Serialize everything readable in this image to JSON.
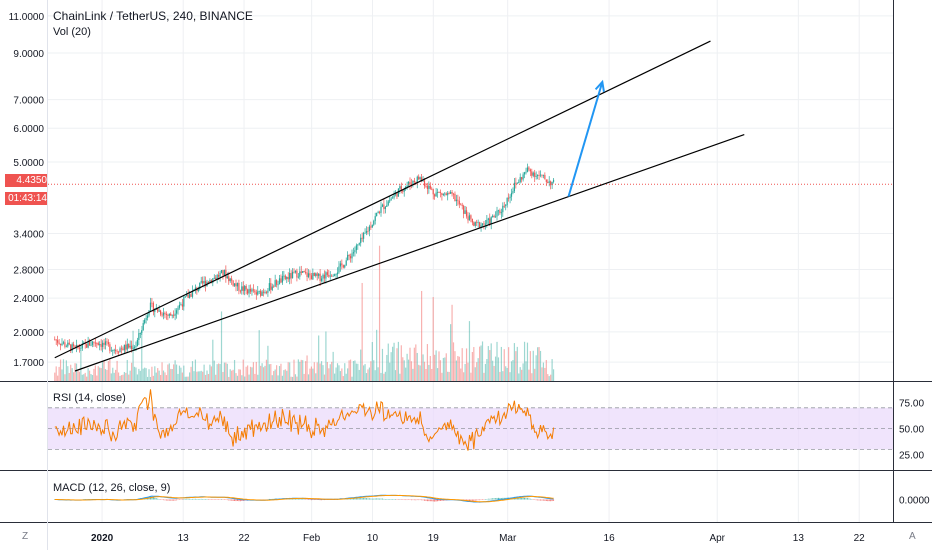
{
  "header": {
    "symbol_line": "ChainLink / TetherUS, 240, BINANCE"
  },
  "volume_legend": "Vol (20)",
  "rsi_legend": "RSI (14, close)",
  "macd_legend": "MACD (12, 26, close, 9)",
  "last_price": "4.4350",
  "countdown": "01:43:14",
  "corner_left": "Z",
  "corner_right": "A",
  "colors": {
    "up": "#26a69a",
    "down": "#ef5350",
    "rsi": "#f57c00",
    "rsi_band": "#e9d8fb",
    "macd": "#2196f3",
    "signal": "#ff9800",
    "arrow": "#2196f3",
    "price_line": "#ef5350"
  },
  "chart_data": [
    {
      "type": "candlestick",
      "title": "ChainLink / TetherUS, 240, BINANCE",
      "y_scale": "log",
      "y_ticks": [
        "11.0000",
        "9.0000",
        "7.0000",
        "6.0000",
        "5.0000",
        "3.4000",
        "2.8000",
        "2.4000",
        "2.0000",
        "1.7000"
      ],
      "x_ticks": [
        "2020",
        "13",
        "22",
        "Feb",
        "10",
        "19",
        "Mar",
        "16",
        "Apr",
        "13",
        "22"
      ],
      "path_points": [
        [
          "2019-12-25",
          1.92
        ],
        [
          "2019-12-28",
          1.82
        ],
        [
          "2019-12-31",
          1.9
        ],
        [
          "2020-01-03",
          1.82
        ],
        [
          "2020-01-06",
          1.86
        ],
        [
          "2020-01-08",
          2.3
        ],
        [
          "2020-01-11",
          2.18
        ],
        [
          "2020-01-14",
          2.45
        ],
        [
          "2020-01-16",
          2.6
        ],
        [
          "2020-01-19",
          2.75
        ],
        [
          "2020-01-21",
          2.55
        ],
        [
          "2020-01-24",
          2.45
        ],
        [
          "2020-01-27",
          2.62
        ],
        [
          "2020-01-30",
          2.75
        ],
        [
          "2020-02-02",
          2.68
        ],
        [
          "2020-02-05",
          2.8
        ],
        [
          "2020-02-08",
          3.2
        ],
        [
          "2020-02-11",
          3.85
        ],
        [
          "2020-02-14",
          4.3
        ],
        [
          "2020-02-17",
          4.6
        ],
        [
          "2020-02-19",
          4.25
        ],
        [
          "2020-02-22",
          4.15
        ],
        [
          "2020-02-25",
          3.55
        ],
        [
          "2020-02-27",
          3.6
        ],
        [
          "2020-02-29",
          3.85
        ],
        [
          "2020-03-02",
          4.4
        ],
        [
          "2020-03-04",
          4.8
        ],
        [
          "2020-03-06",
          4.6
        ],
        [
          "2020-03-08",
          4.435
        ]
      ],
      "trendlines": [
        {
          "from": [
            "2019-12-25",
            1.74
          ],
          "to": [
            "2020-03-31",
            9.6
          ]
        },
        {
          "from": [
            "2019-12-28",
            1.62
          ],
          "to": [
            "2020-04-05",
            5.8
          ]
        }
      ],
      "arrow": {
        "from": [
          "2020-03-10",
          4.15
        ],
        "to": [
          "2020-03-15",
          7.7
        ]
      },
      "last_price": 4.435
    },
    {
      "type": "bar",
      "title": "Vol (20)",
      "note": "volume histogram, no values printed"
    },
    {
      "type": "line",
      "title": "RSI (14, close)",
      "y_ticks": [
        "75.00",
        "50.00",
        "25.00"
      ],
      "band": [
        30,
        70
      ]
    },
    {
      "type": "line",
      "title": "MACD (12, 26, close, 9)",
      "y_ticks": [
        "0.0000"
      ]
    }
  ]
}
